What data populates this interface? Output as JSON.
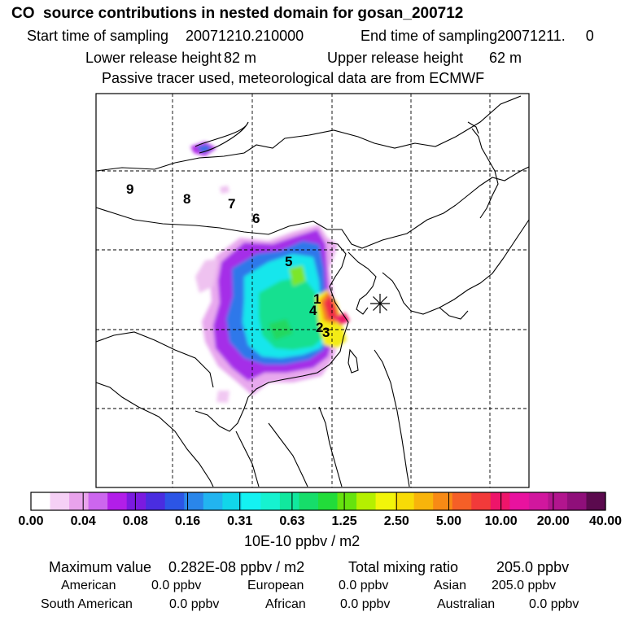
{
  "header": {
    "title": "CO  source contributions in nested domain for gosan_200712",
    "start_label": "Start time of sampling",
    "start_value": "20071210.210000",
    "end_label": "End time of sampling",
    "end_value": "20071211.     0",
    "lower_label": "Lower release height",
    "lower_value": "82 m",
    "upper_label": "Upper release height",
    "upper_value": "62 m",
    "passive_note": "Passive tracer used, meteorological data are from ECMWF"
  },
  "map": {
    "source_labels": [
      "1",
      "2",
      "3",
      "4",
      "5",
      "6",
      "7",
      "8",
      "9"
    ],
    "receptor_marker": "asterisk-icon",
    "colors": {
      "land_outline": "#000000",
      "grid": "#000000"
    }
  },
  "colorbar": {
    "tick_labels": [
      "0.00",
      "0.04",
      "0.08",
      "0.16",
      "0.31",
      "0.63",
      "1.25",
      "2.50",
      "5.00",
      "10.00",
      "20.00",
      "40.00"
    ],
    "unit": "10E-10 ppbv / m2",
    "colors": [
      "#ffffff",
      "#f6d0f6",
      "#e9a3ec",
      "#cc66ee",
      "#b21ee9",
      "#7b1ae0",
      "#4a2de0",
      "#2c55e6",
      "#2a86ea",
      "#22b4f0",
      "#11d6ea",
      "#14f2f2",
      "#16f2d0",
      "#11e89e",
      "#16dd6a",
      "#22dc3a",
      "#66e30e",
      "#b5f000",
      "#f2f50a",
      "#f8db06",
      "#f8b40b",
      "#f88a15",
      "#f55f27",
      "#f23a3a",
      "#ee156a",
      "#e8129f",
      "#d1179e",
      "#b2158e",
      "#8f0f7a",
      "#5b0a4e"
    ]
  },
  "footer": {
    "max_label": "Maximum value",
    "max_value": "0.282E-08 ppbv / m2",
    "total_label": "Total mixing ratio",
    "total_value": "205.0 ppbv",
    "regions": [
      {
        "name": "American",
        "value": "0.0 ppbv"
      },
      {
        "name": "European",
        "value": "0.0 ppbv"
      },
      {
        "name": "Asian",
        "value": "205.0 ppbv"
      },
      {
        "name": "South American",
        "value": "0.0 ppbv"
      },
      {
        "name": "African",
        "value": "0.0 ppbv"
      },
      {
        "name": "Australian",
        "value": "0.0 ppbv"
      }
    ]
  }
}
